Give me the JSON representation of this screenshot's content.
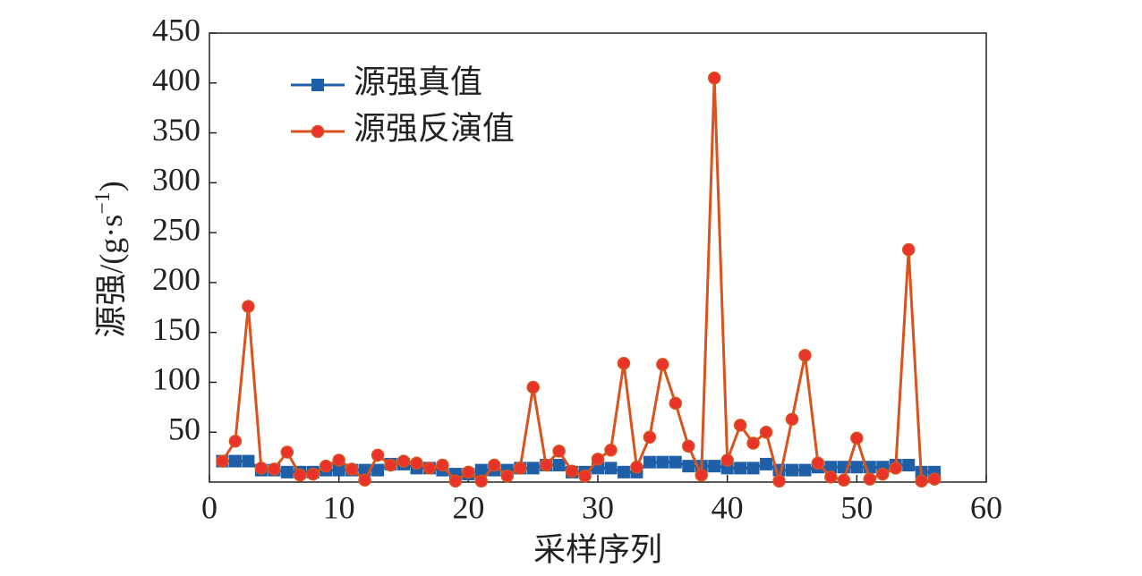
{
  "chart_data": {
    "type": "line",
    "xlabel": "采样序列",
    "ylabel": "源强/(g·s",
    "ylabel_sup": "−1",
    "ylabel_end": ")",
    "x": [
      1,
      2,
      3,
      4,
      5,
      6,
      7,
      8,
      9,
      10,
      11,
      12,
      13,
      14,
      15,
      16,
      17,
      18,
      19,
      20,
      21,
      22,
      23,
      24,
      25,
      26,
      27,
      28,
      29,
      30,
      31,
      32,
      33,
      34,
      35,
      36,
      37,
      38,
      39,
      40,
      41,
      42,
      43,
      44,
      45,
      46,
      47,
      48,
      49,
      50,
      51,
      52,
      53,
      54,
      55,
      56
    ],
    "series": [
      {
        "name": "源强真值",
        "color": "#1f5fa8",
        "marker": "square",
        "values": [
          21,
          21,
          21,
          12,
          12,
          10,
          10,
          10,
          12,
          12,
          12,
          12,
          12,
          18,
          18,
          14,
          14,
          12,
          8,
          8,
          12,
          12,
          12,
          14,
          14,
          17,
          17,
          10,
          10,
          14,
          14,
          10,
          10,
          20,
          20,
          20,
          16,
          16,
          16,
          14,
          14,
          14,
          18,
          12,
          12,
          12,
          15,
          15,
          15,
          15,
          15,
          15,
          17,
          17,
          10,
          10
        ]
      },
      {
        "name": "源强反演值",
        "color": "#d9531e",
        "marker": "circle",
        "values": [
          21,
          41,
          176,
          14,
          13,
          30,
          7,
          8,
          16,
          22,
          13,
          2,
          27,
          17,
          21,
          19,
          14,
          17,
          1,
          10,
          1,
          17,
          6,
          14,
          95,
          17,
          31,
          11,
          6,
          23,
          32,
          119,
          15,
          45,
          118,
          79,
          36,
          7,
          405,
          22,
          57,
          39,
          50,
          1,
          63,
          127,
          19,
          5,
          2,
          44,
          3,
          8,
          14,
          233,
          1,
          3
        ]
      }
    ],
    "xlim": [
      0,
      60
    ],
    "xticks": [
      0,
      10,
      20,
      30,
      40,
      50,
      60
    ],
    "ylim": [
      0,
      450
    ],
    "yticks": [
      50,
      100,
      150,
      200,
      250,
      300,
      350,
      400,
      450
    ],
    "legend": "upper left",
    "grid": false
  }
}
